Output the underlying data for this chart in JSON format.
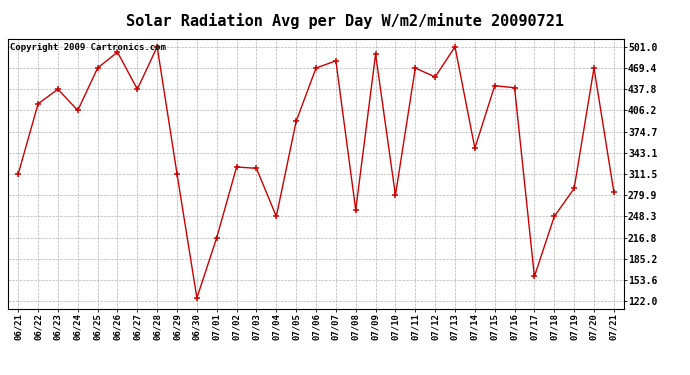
{
  "title": "Solar Radiation Avg per Day W/m2/minute 20090721",
  "copyright": "Copyright 2009 Cartronics.com",
  "labels": [
    "06/21",
    "06/22",
    "06/23",
    "06/24",
    "06/25",
    "06/26",
    "06/27",
    "06/28",
    "06/29",
    "06/30",
    "07/01",
    "07/02",
    "07/03",
    "07/04",
    "07/05",
    "07/06",
    "07/07",
    "07/08",
    "07/09",
    "07/10",
    "07/11",
    "07/12",
    "07/13",
    "07/14",
    "07/15",
    "07/16",
    "07/17",
    "07/18",
    "07/19",
    "07/20",
    "07/21"
  ],
  "values": [
    311.5,
    416.0,
    437.8,
    406.2,
    469.4,
    493.0,
    437.8,
    501.0,
    311.5,
    127.0,
    216.8,
    322.0,
    320.0,
    248.3,
    390.0,
    469.4,
    480.0,
    258.0,
    490.0,
    279.9,
    469.4,
    456.0,
    501.0,
    350.0,
    443.0,
    440.0,
    159.0,
    248.3,
    290.0,
    469.4,
    285.0
  ],
  "line_color": "#cc0000",
  "marker_color": "#cc0000",
  "bg_color": "#ffffff",
  "grid_color": "#aaaaaa",
  "yticks": [
    122.0,
    153.6,
    185.2,
    216.8,
    248.3,
    279.9,
    311.5,
    343.1,
    374.7,
    406.2,
    437.8,
    469.4,
    501.0
  ],
  "ymin": 110.0,
  "ymax": 512.0,
  "title_fontsize": 11,
  "copyright_fontsize": 6.5,
  "tick_fontsize": 7,
  "label_fontsize": 6.5
}
